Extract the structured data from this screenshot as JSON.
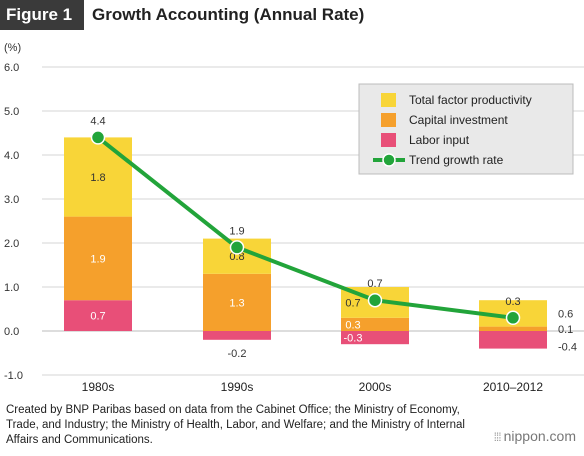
{
  "header": {
    "figure_label": "Figure 1",
    "title": "Growth Accounting (Annual Rate)"
  },
  "footer": {
    "source": "Created by BNP Paribas based on data from the Cabinet Office; the Ministry of Economy, Trade, and Industry; the Ministry of Health, Labor, and Welfare; and the Ministry of Internal Affairs and Communications."
  },
  "brand": {
    "dots": "⁞⁞⁞",
    "name": "nippon.com"
  },
  "chart_data": {
    "type": "bar",
    "stacked": true,
    "y_unit": "(%)",
    "ylim": [
      -1.0,
      6.0
    ],
    "yticks": [
      -1.0,
      0.0,
      1.0,
      2.0,
      3.0,
      4.0,
      5.0,
      6.0
    ],
    "ytick_labels": [
      "-1.0",
      "0.0",
      "1.0",
      "2.0",
      "3.0",
      "4.0",
      "5.0",
      "6.0"
    ],
    "grid": true,
    "categories": [
      "1980s",
      "1990s",
      "2000s",
      "2010–2012"
    ],
    "series": [
      {
        "name": "Labor input",
        "color": "#e84f78",
        "values": [
          0.7,
          -0.2,
          -0.3,
          -0.4
        ],
        "labels": [
          "0.7",
          "-0.2",
          "-0.3",
          "-0.4"
        ]
      },
      {
        "name": "Capital investment",
        "color": "#f5a02c",
        "values": [
          1.9,
          1.3,
          0.3,
          0.1
        ],
        "labels": [
          "1.9",
          "1.3",
          "0.3",
          "0.1"
        ]
      },
      {
        "name": "Total factor productivity",
        "color": "#f8d538",
        "values": [
          1.8,
          0.8,
          0.7,
          0.6
        ],
        "labels": [
          "1.8",
          "0.8",
          "0.7",
          "0.6"
        ]
      }
    ],
    "trend": {
      "name": "Trend growth rate",
      "color": "#22a43a",
      "values": [
        4.4,
        1.9,
        0.7,
        0.3
      ],
      "labels": [
        "4.4",
        "1.9",
        "0.7",
        "0.3"
      ]
    },
    "legend_position": "top-right",
    "legend_order": [
      "Total factor productivity",
      "Capital investment",
      "Labor input",
      "Trend growth rate"
    ]
  }
}
